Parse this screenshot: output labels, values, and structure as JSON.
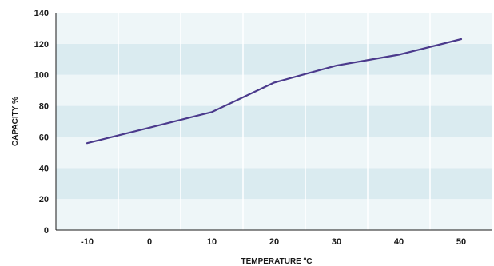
{
  "chart_data": {
    "type": "line",
    "xlabel": "TEMPERATURE ºC",
    "ylabel": "CAPACITY %",
    "x_ticks": [
      -10,
      0,
      10,
      20,
      30,
      40,
      50
    ],
    "y_ticks": [
      0,
      20,
      40,
      60,
      80,
      100,
      120,
      140
    ],
    "xlim": [
      -15,
      55
    ],
    "ylim": [
      0,
      140
    ],
    "grid": true,
    "series": [
      {
        "x": [
          -10,
          0,
          10,
          20,
          30,
          40,
          50
        ],
        "y": [
          56,
          66,
          76,
          95,
          106,
          113,
          123
        ],
        "color": "#4b3a8c"
      }
    ],
    "band_colors": [
      "#eef6f8",
      "#daebf0"
    ]
  }
}
